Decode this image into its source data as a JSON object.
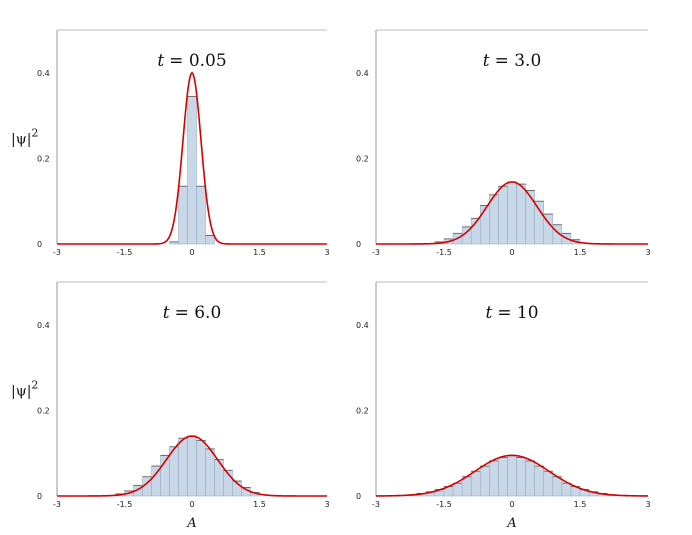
{
  "chart_data": [
    {
      "type": "area",
      "title_var": "t",
      "title_eq": "= 0.05",
      "ylabel_base": "|ψ|",
      "ylabel_exp": "2",
      "xlabel": "",
      "xlim": [
        -3,
        3
      ],
      "ylim": [
        0,
        0.5
      ],
      "x_ticks": [
        "-3",
        "-1.5",
        "0",
        "1.5",
        "3"
      ],
      "y_ticks": [
        "0",
        "0.2",
        "0.4"
      ],
      "curve": {
        "mean": 0,
        "sigma": 0.2,
        "peak": 0.4,
        "color": "#d40000"
      },
      "histogram": {
        "bin_width": 0.2,
        "bins": [
          {
            "x": -0.4,
            "y": 0.005
          },
          {
            "x": -0.2,
            "y": 0.135
          },
          {
            "x": 0.0,
            "y": 0.345
          },
          {
            "x": 0.2,
            "y": 0.135
          },
          {
            "x": 0.4,
            "y": 0.02
          }
        ],
        "color": "#c8d8e8"
      }
    },
    {
      "type": "area",
      "title_var": "t",
      "title_eq": "= 3.0",
      "ylabel_base": "",
      "ylabel_exp": "",
      "xlabel": "",
      "xlim": [
        -3,
        3
      ],
      "ylim": [
        0,
        0.5
      ],
      "x_ticks": [
        "-3",
        "-1.5",
        "0",
        "1.5",
        "3"
      ],
      "y_ticks": [
        "0",
        "0.2",
        "0.4"
      ],
      "curve": {
        "mean": 0,
        "sigma": 0.55,
        "peak": 0.145,
        "color": "#d40000"
      },
      "histogram": {
        "bin_width": 0.2,
        "bins": [
          {
            "x": -1.6,
            "y": 0.005
          },
          {
            "x": -1.4,
            "y": 0.012
          },
          {
            "x": -1.2,
            "y": 0.025
          },
          {
            "x": -1.0,
            "y": 0.04
          },
          {
            "x": -0.8,
            "y": 0.06
          },
          {
            "x": -0.6,
            "y": 0.09
          },
          {
            "x": -0.4,
            "y": 0.115
          },
          {
            "x": -0.2,
            "y": 0.135
          },
          {
            "x": 0.0,
            "y": 0.145
          },
          {
            "x": 0.2,
            "y": 0.14
          },
          {
            "x": 0.4,
            "y": 0.125
          },
          {
            "x": 0.6,
            "y": 0.1
          },
          {
            "x": 0.8,
            "y": 0.07
          },
          {
            "x": 1.0,
            "y": 0.045
          },
          {
            "x": 1.2,
            "y": 0.025
          },
          {
            "x": 1.4,
            "y": 0.01
          }
        ],
        "color": "#c8d8e8"
      }
    },
    {
      "type": "area",
      "title_var": "t",
      "title_eq": "= 6.0",
      "ylabel_base": "|ψ|",
      "ylabel_exp": "2",
      "xlabel": "A",
      "xlim": [
        -3,
        3
      ],
      "ylim": [
        0,
        0.5
      ],
      "x_ticks": [
        "-3",
        "-1.5",
        "0",
        "1.5",
        "3"
      ],
      "y_ticks": [
        "0",
        "0.2",
        "0.4"
      ],
      "curve": {
        "mean": 0,
        "sigma": 0.57,
        "peak": 0.14,
        "color": "#d40000"
      },
      "histogram": {
        "bin_width": 0.2,
        "bins": [
          {
            "x": -1.6,
            "y": 0.005
          },
          {
            "x": -1.4,
            "y": 0.012
          },
          {
            "x": -1.2,
            "y": 0.025
          },
          {
            "x": -1.0,
            "y": 0.045
          },
          {
            "x": -0.8,
            "y": 0.07
          },
          {
            "x": -0.6,
            "y": 0.095
          },
          {
            "x": -0.4,
            "y": 0.115
          },
          {
            "x": -0.2,
            "y": 0.135
          },
          {
            "x": 0.0,
            "y": 0.14
          },
          {
            "x": 0.2,
            "y": 0.13
          },
          {
            "x": 0.4,
            "y": 0.11
          },
          {
            "x": 0.6,
            "y": 0.085
          },
          {
            "x": 0.8,
            "y": 0.06
          },
          {
            "x": 1.0,
            "y": 0.035
          },
          {
            "x": 1.2,
            "y": 0.02
          },
          {
            "x": 1.4,
            "y": 0.008
          }
        ],
        "color": "#c8d8e8"
      }
    },
    {
      "type": "area",
      "title_var": "t",
      "title_eq": "= 10",
      "ylabel_base": "",
      "ylabel_exp": "",
      "xlabel": "A",
      "xlim": [
        -3,
        3
      ],
      "ylim": [
        0,
        0.5
      ],
      "x_ticks": [
        "-3",
        "-1.5",
        "0",
        "1.5",
        "3"
      ],
      "y_ticks": [
        "0",
        "0.2",
        "0.4"
      ],
      "curve": {
        "mean": 0,
        "sigma": 0.82,
        "peak": 0.095,
        "color": "#d40000"
      },
      "histogram": {
        "bin_width": 0.2,
        "bins": [
          {
            "x": -2.2,
            "y": 0.003
          },
          {
            "x": -2.0,
            "y": 0.006
          },
          {
            "x": -1.8,
            "y": 0.01
          },
          {
            "x": -1.6,
            "y": 0.015
          },
          {
            "x": -1.4,
            "y": 0.022
          },
          {
            "x": -1.2,
            "y": 0.03
          },
          {
            "x": -1.0,
            "y": 0.045
          },
          {
            "x": -0.8,
            "y": 0.058
          },
          {
            "x": -0.6,
            "y": 0.07
          },
          {
            "x": -0.4,
            "y": 0.082
          },
          {
            "x": -0.2,
            "y": 0.09
          },
          {
            "x": 0.0,
            "y": 0.094
          },
          {
            "x": 0.2,
            "y": 0.09
          },
          {
            "x": 0.4,
            "y": 0.082
          },
          {
            "x": 0.6,
            "y": 0.07
          },
          {
            "x": 0.8,
            "y": 0.058
          },
          {
            "x": 1.0,
            "y": 0.045
          },
          {
            "x": 1.2,
            "y": 0.03
          },
          {
            "x": 1.4,
            "y": 0.022
          },
          {
            "x": 1.6,
            "y": 0.015
          },
          {
            "x": 1.8,
            "y": 0.01
          },
          {
            "x": 2.0,
            "y": 0.006
          },
          {
            "x": 2.2,
            "y": 0.003
          }
        ],
        "color": "#c8d8e8"
      }
    }
  ]
}
